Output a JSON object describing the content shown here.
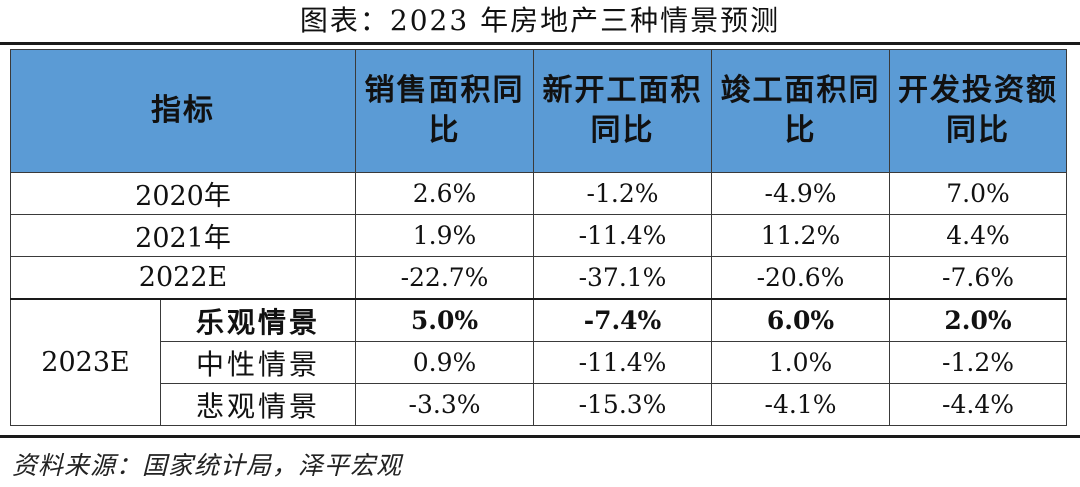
{
  "title": "图表：2023 年房地产三种情景预测",
  "columns": [
    "指标",
    "销售面积同比",
    "新开工面积同比",
    "竣工面积同比",
    "开发投资额同比"
  ],
  "history_rows": [
    {
      "label": "2020年",
      "values": [
        "2.6%",
        "-1.2%",
        "-4.9%",
        "7.0%"
      ]
    },
    {
      "label": "2021年",
      "values": [
        "1.9%",
        "-11.4%",
        "11.2%",
        "4.4%"
      ]
    },
    {
      "label": "2022E",
      "values": [
        "-22.7%",
        "-37.1%",
        "-20.6%",
        "-7.6%"
      ]
    }
  ],
  "forecast": {
    "year": "2023E",
    "scenarios": [
      {
        "name": "乐观情景",
        "values": [
          "5.0%",
          "-7.4%",
          "6.0%",
          "2.0%"
        ]
      },
      {
        "name": "中性情景",
        "values": [
          "0.9%",
          "-11.4%",
          "1.0%",
          "-1.2%"
        ]
      },
      {
        "name": "悲观情景",
        "values": [
          "-3.3%",
          "-15.3%",
          "-4.1%",
          "-4.4%"
        ]
      }
    ]
  },
  "source": "资料来源：国家统计局，泽平宏观",
  "colors": {
    "header_bg": "#5b9bd5",
    "rule": "#1a1a1a"
  }
}
